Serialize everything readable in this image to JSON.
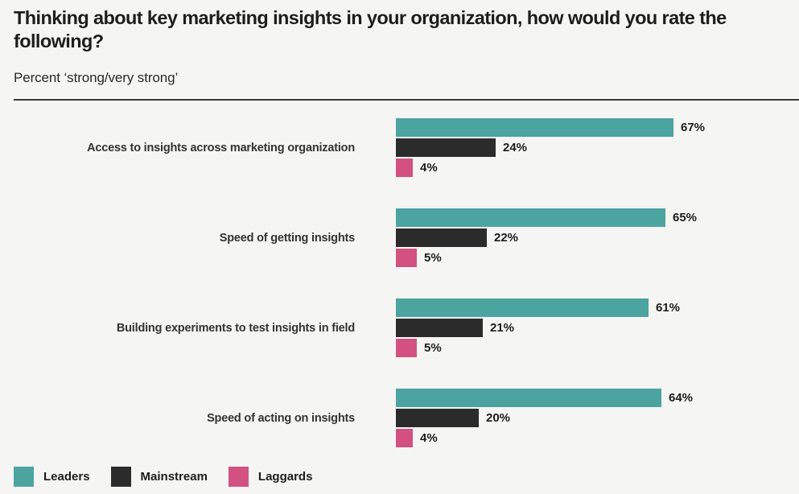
{
  "chart_data": {
    "type": "bar",
    "orientation": "horizontal",
    "title": "Thinking about key marketing insights in your organization, how would you rate the following?",
    "subtitle": "Percent ‘strong/very strong’",
    "categories": [
      "Access to insights across marketing organization",
      "Speed of getting insights",
      "Building experiments to test insights in field",
      "Speed of acting on insights"
    ],
    "series": [
      {
        "name": "Leaders",
        "color": "#4BA4A0",
        "values": [
          67,
          65,
          61,
          64
        ]
      },
      {
        "name": "Mainstream",
        "color": "#2B2B2B",
        "values": [
          24,
          22,
          21,
          20
        ]
      },
      {
        "name": "Laggards",
        "color": "#D25181",
        "values": [
          4,
          5,
          5,
          4
        ]
      }
    ],
    "value_suffix": "%",
    "xlim": [
      0,
      100
    ],
    "grid": "off",
    "legend_position": "bottom-left",
    "background_color": "#F5F5F4",
    "divider_color": "#3A3A3A",
    "text_color": "#1D1D1D"
  }
}
